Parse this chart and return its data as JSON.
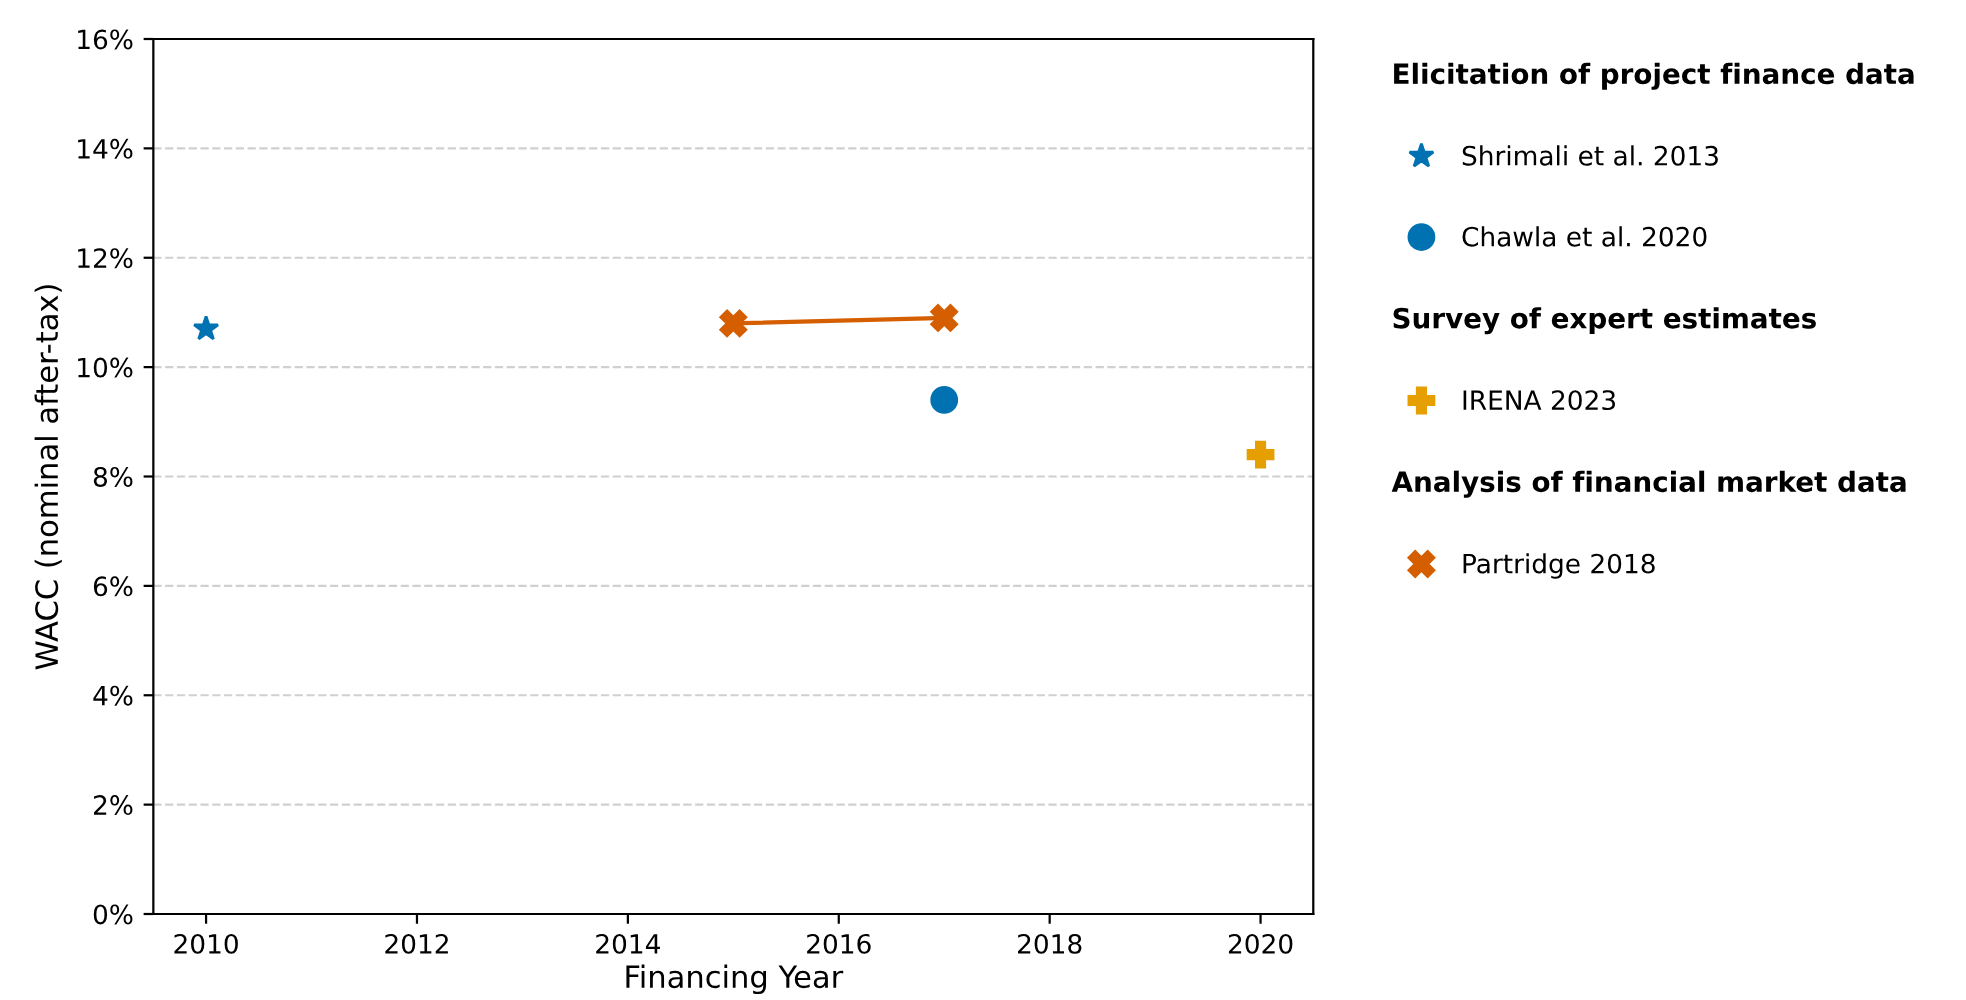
{
  "chart_data": {
    "type": "scatter",
    "xlabel": "Financing Year",
    "ylabel": "WACC (nominal after-tax)",
    "xlim": [
      2009.5,
      2020.5
    ],
    "xticks": [
      2010,
      2012,
      2014,
      2016,
      2018,
      2020
    ],
    "ylim": [
      0,
      16
    ],
    "yticks": [
      {
        "value": 0,
        "label": "0%"
      },
      {
        "value": 2,
        "label": "2%"
      },
      {
        "value": 4,
        "label": "4%"
      },
      {
        "value": 6,
        "label": "6%"
      },
      {
        "value": 8,
        "label": "8%"
      },
      {
        "value": 10,
        "label": "10%"
      },
      {
        "value": 12,
        "label": "12%"
      },
      {
        "value": 14,
        "label": "14%"
      },
      {
        "value": 16,
        "label": "16%"
      }
    ],
    "grid": "y",
    "legend": "right",
    "annotations": [
      "Elicitation of project finance data",
      "Survey of expert estimates",
      "Analysis of financial market data"
    ],
    "series": [
      {
        "name": "Shrimali et al. 2013",
        "marker": "star",
        "color": "#0072b2",
        "x": [
          2010
        ],
        "values": [
          10.7
        ]
      },
      {
        "name": "Chawla et al. 2020",
        "marker": "circle",
        "color": "#0072b2",
        "x": [
          2017
        ],
        "values": [
          9.4
        ]
      },
      {
        "name": "IRENA 2023",
        "marker": "plus",
        "color": "#e69f00",
        "x": [
          2020
        ],
        "values": [
          8.4
        ]
      },
      {
        "name": "Partridge 2018",
        "type": "line",
        "marker": "cross",
        "color": "#d55e00",
        "x": [
          2015,
          2017
        ],
        "values": [
          10.8,
          10.9
        ]
      }
    ]
  }
}
